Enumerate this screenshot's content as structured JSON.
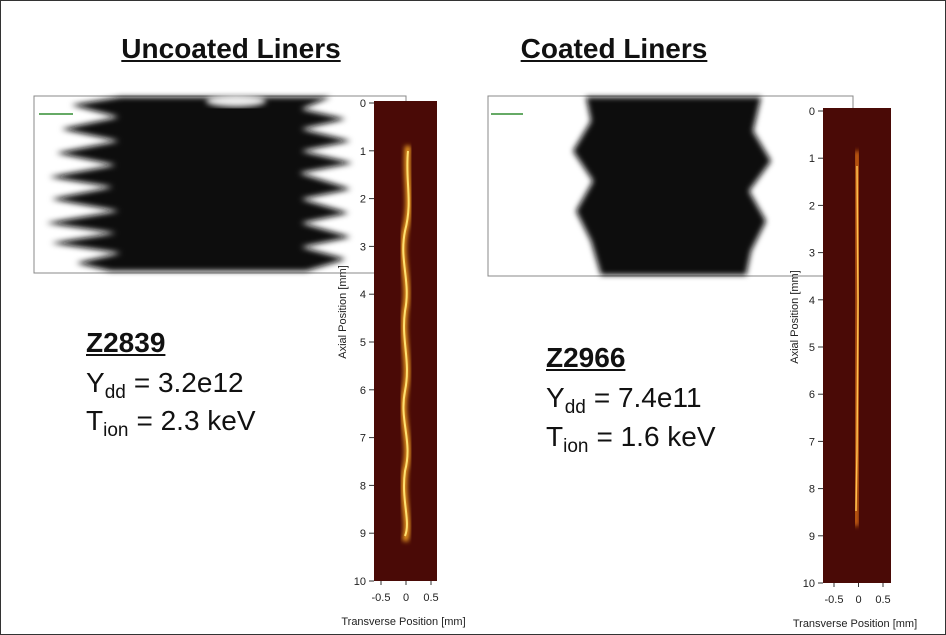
{
  "panels": [
    {
      "title": "Uncoated Liners",
      "shot": "Z2839",
      "yield": {
        "symbol": "Y",
        "subscript": "dd",
        "value": "= 3.2e12"
      },
      "temperature": {
        "symbol": "T",
        "subscript": "ion",
        "value": "= 2.3 keV"
      },
      "axial_label": "Axial Position [mm]",
      "axial_ticks": [
        0,
        1,
        2,
        3,
        4,
        5,
        6,
        7,
        8,
        9,
        10
      ],
      "transverse_label": "Transverse Position [mm]",
      "transverse_ticks": [
        -0.5,
        0,
        0.5
      ]
    },
    {
      "title": "Coated Liners",
      "shot": "Z2966",
      "yield": {
        "symbol": "Y",
        "subscript": "dd",
        "value": "= 7.4e11"
      },
      "temperature": {
        "symbol": "T",
        "subscript": "ion",
        "value": "= 1.6 keV"
      },
      "axial_label": "Axial Position [mm]",
      "axial_ticks": [
        0,
        1,
        2,
        3,
        4,
        5,
        6,
        7,
        8,
        9,
        10
      ],
      "transverse_label": "Transverse Position [mm]",
      "transverse_ticks": [
        -0.5,
        0,
        0.5
      ]
    }
  ]
}
